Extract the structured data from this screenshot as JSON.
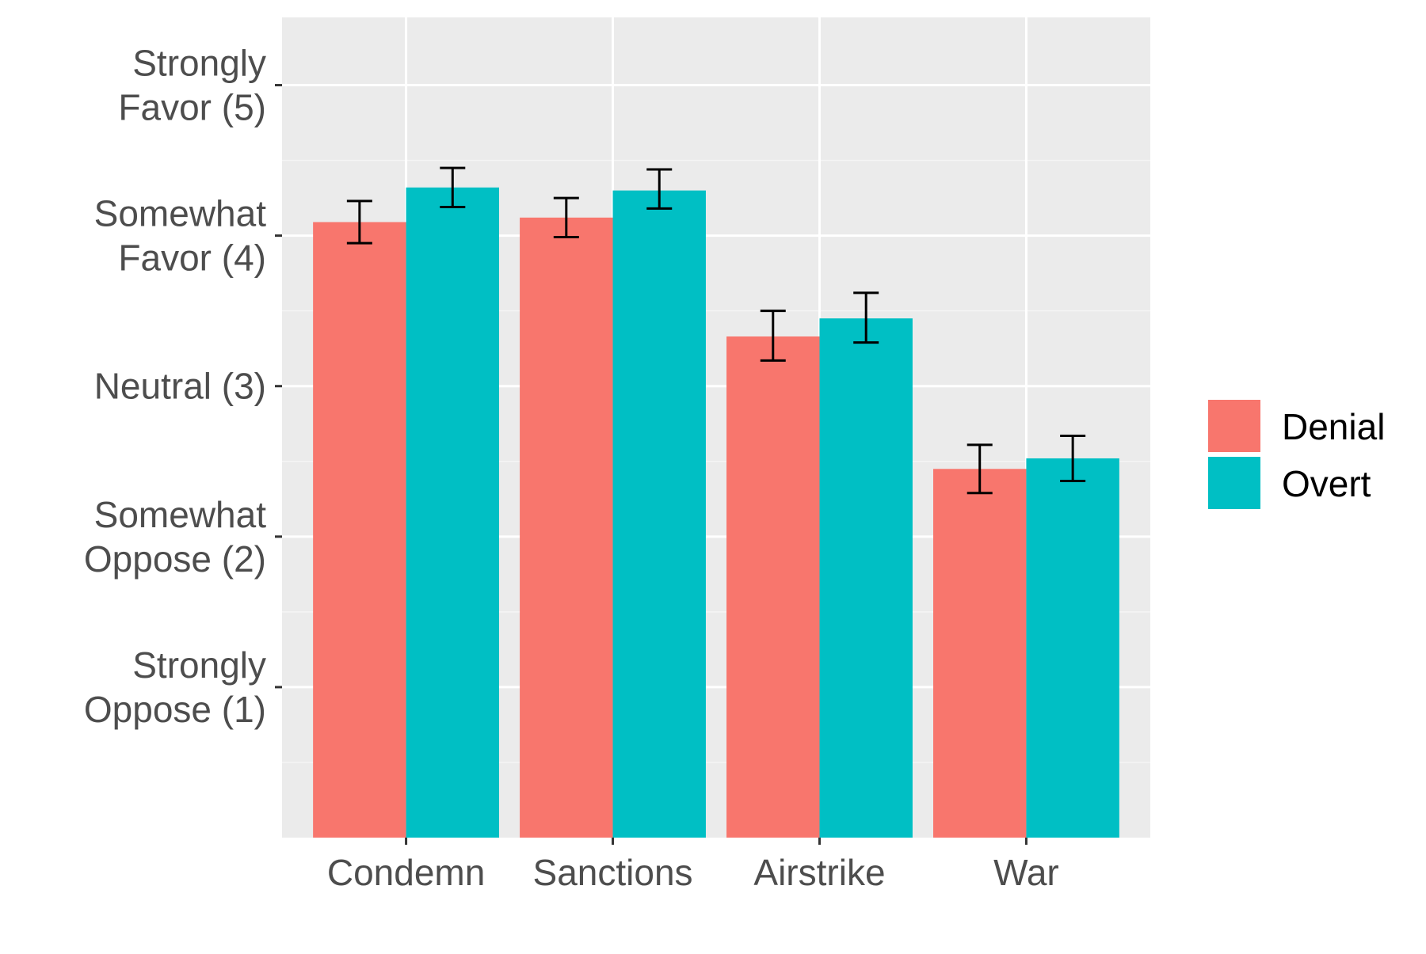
{
  "chart_data": {
    "type": "bar",
    "categories": [
      "Condemn",
      "Sanctions",
      "Airstrike",
      "War"
    ],
    "series": [
      {
        "name": "Denial",
        "color": "#F8766D",
        "values": [
          4.09,
          4.12,
          3.33,
          2.45
        ],
        "error_low": [
          3.95,
          3.99,
          3.17,
          2.29
        ],
        "error_high": [
          4.23,
          4.25,
          3.5,
          2.61
        ]
      },
      {
        "name": "Overt",
        "color": "#00BFC4",
        "values": [
          4.32,
          4.3,
          3.45,
          2.52
        ],
        "error_low": [
          4.19,
          4.18,
          3.29,
          2.37
        ],
        "error_high": [
          4.45,
          4.44,
          3.62,
          2.67
        ]
      }
    ],
    "y_ticks": [
      {
        "value": 5,
        "lines": [
          "Strongly",
          "Favor (5)"
        ]
      },
      {
        "value": 4,
        "lines": [
          "Somewhat",
          "Favor (4)"
        ]
      },
      {
        "value": 3,
        "lines": [
          "Neutral (3)"
        ]
      },
      {
        "value": 2,
        "lines": [
          "Somewhat",
          "Oppose (2)"
        ]
      },
      {
        "value": 1,
        "lines": [
          "Strongly",
          "Oppose (1)"
        ]
      }
    ],
    "ylim": [
      0,
      5.45
    ],
    "title": "",
    "xlabel": "",
    "ylabel": "",
    "grid": true,
    "panel_background": "#EBEBEB",
    "legend_position": "right"
  }
}
